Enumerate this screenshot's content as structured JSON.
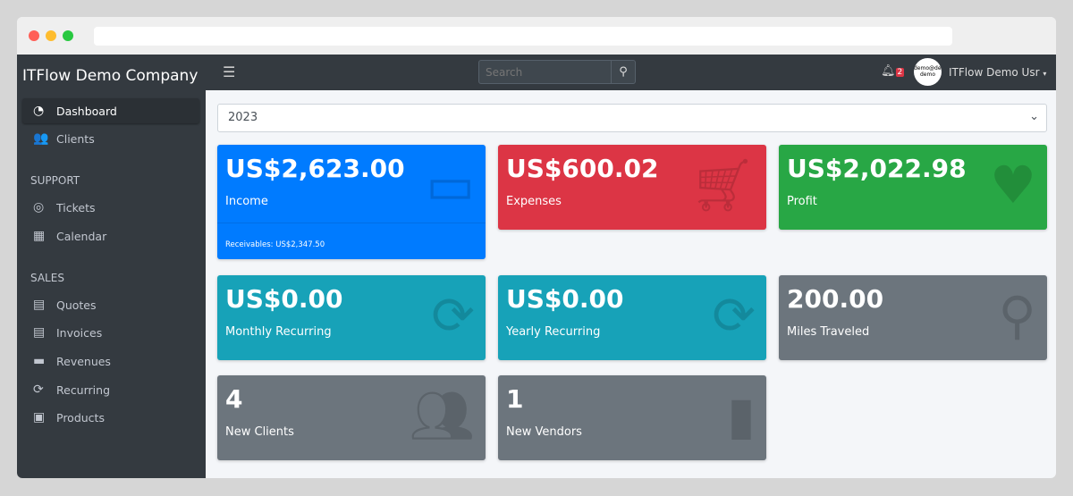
{
  "sidebar": {
    "brand": "ITFlow Demo Company",
    "items": [
      {
        "label": "Dashboard",
        "icon": "tachometer-icon"
      },
      {
        "label": "Clients",
        "icon": "users-icon"
      }
    ],
    "support_header": "SUPPORT",
    "support": [
      {
        "label": "Tickets",
        "icon": "life-ring-icon"
      },
      {
        "label": "Calendar",
        "icon": "calendar-icon"
      }
    ],
    "sales_header": "SALES",
    "sales": [
      {
        "label": "Quotes",
        "icon": "file-icon"
      },
      {
        "label": "Invoices",
        "icon": "invoice-icon"
      },
      {
        "label": "Revenues",
        "icon": "credit-card-icon"
      },
      {
        "label": "Recurring",
        "icon": "sync-icon"
      },
      {
        "label": "Products",
        "icon": "box-icon"
      }
    ]
  },
  "topbar": {
    "search_placeholder": "Search",
    "notif_count": "2",
    "avatar_text": "demo@demo demo",
    "user": "ITFlow Demo Usr"
  },
  "year": "2023",
  "cards": [
    {
      "value": "US$2,623.00",
      "label": "Income",
      "footer": "Receivables: US$2,347.50",
      "color": "#007bff",
      "icon": "credit-card-icon"
    },
    {
      "value": "US$600.02",
      "label": "Expenses",
      "color": "#dc3545",
      "icon": "shopping-cart-icon"
    },
    {
      "value": "US$2,022.98",
      "label": "Profit",
      "color": "#28a745",
      "icon": "heart-icon"
    },
    {
      "value": "US$0.00",
      "label": "Monthly Recurring",
      "color": "#17a2b8",
      "icon": "sync-icon"
    },
    {
      "value": "US$0.00",
      "label": "Yearly Recurring",
      "color": "#17a2b8",
      "icon": "sync-icon"
    },
    {
      "value": "200.00",
      "label": "Miles Traveled",
      "color": "#6c757d",
      "icon": "route-icon"
    },
    {
      "value": "4",
      "label": "New Clients",
      "color": "#6c757d",
      "icon": "users-icon"
    },
    {
      "value": "1",
      "label": "New Vendors",
      "color": "#6c757d",
      "icon": "building-icon"
    }
  ]
}
